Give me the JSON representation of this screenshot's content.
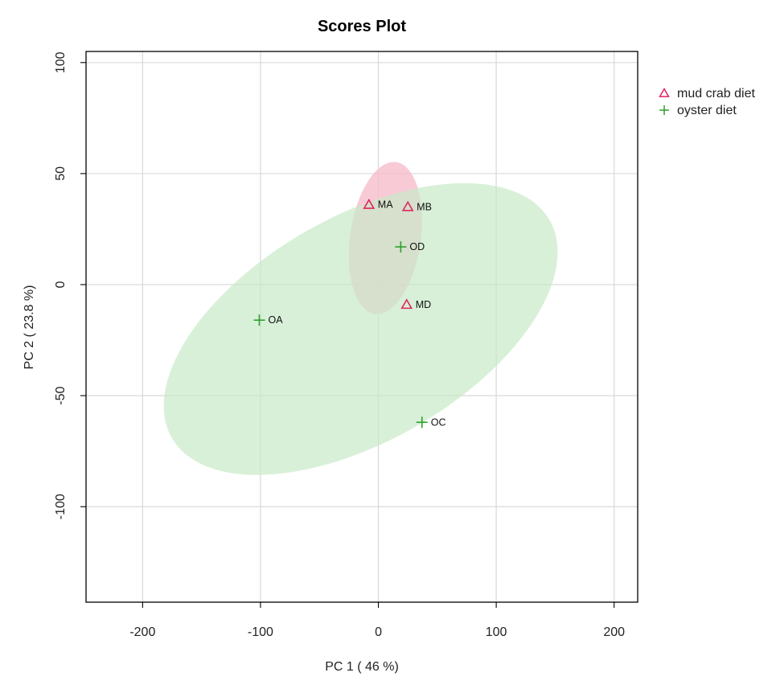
{
  "chart_data": {
    "type": "scatter",
    "title": "Scores Plot",
    "xlabel": "PC 1 ( 46 %)",
    "ylabel": "PC 2 ( 23.8 %)",
    "xlim": [
      -248,
      220
    ],
    "ylim": [
      -143,
      105
    ],
    "xticks": [
      -200,
      -100,
      0,
      100,
      200
    ],
    "yticks": [
      100,
      50,
      0,
      -50,
      -100
    ],
    "xtick_labels": [
      "-200",
      "-100",
      "0",
      "100",
      "200"
    ],
    "ytick_labels": [
      "100",
      "50",
      "0",
      "-50",
      "-100"
    ],
    "grid": true,
    "legend_position": "right",
    "series": [
      {
        "name": "mud crab diet",
        "marker": "triangle",
        "color": "#e0245e",
        "fill": "#f5b8c8",
        "ellipse": {
          "cx": 6,
          "cy": 21,
          "rx": 65,
          "ry": 30,
          "angle": -82
        },
        "points": [
          {
            "label": "MA",
            "x": -8,
            "y": 36
          },
          {
            "label": "MB",
            "x": 25,
            "y": 35
          },
          {
            "label": "MD",
            "x": 24,
            "y": -9
          }
        ]
      },
      {
        "name": "oyster diet",
        "marker": "plus",
        "color": "#2ca02c",
        "fill": "#c8e9c8",
        "ellipse": {
          "cx": -15,
          "cy": -20,
          "rx": 185,
          "ry": 95,
          "angle": -30
        },
        "points": [
          {
            "label": "OD",
            "x": 19,
            "y": 17
          },
          {
            "label": "OA",
            "x": -101,
            "y": -16
          },
          {
            "label": "OC",
            "x": 37,
            "y": -62
          }
        ]
      }
    ]
  }
}
